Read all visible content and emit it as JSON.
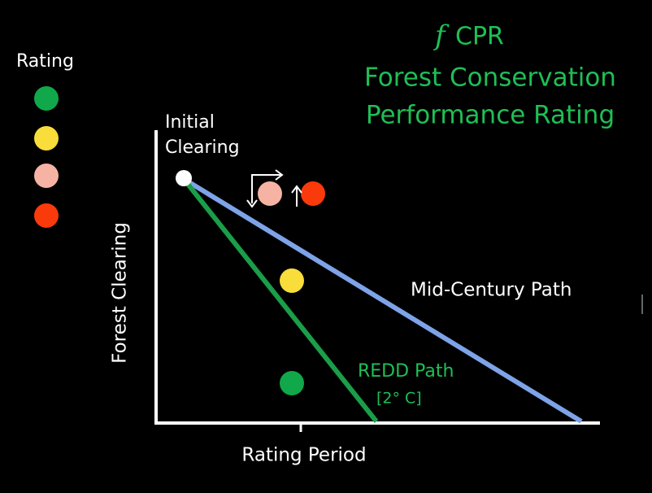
{
  "legend": {
    "title": "Rating"
  },
  "title": {
    "symbol": "f",
    "text": "CPR"
  },
  "subtitle": [
    "Forest Conservation",
    "Performance Rating"
  ],
  "start_label": [
    "Initial",
    "Clearing"
  ],
  "y_axis_label": "Forest Clearing",
  "x_axis_label": "Rating Period",
  "paths": [
    {
      "name": "Mid-Century Path"
    },
    {
      "name": "REDD Path",
      "note": "[2° C]"
    }
  ]
}
